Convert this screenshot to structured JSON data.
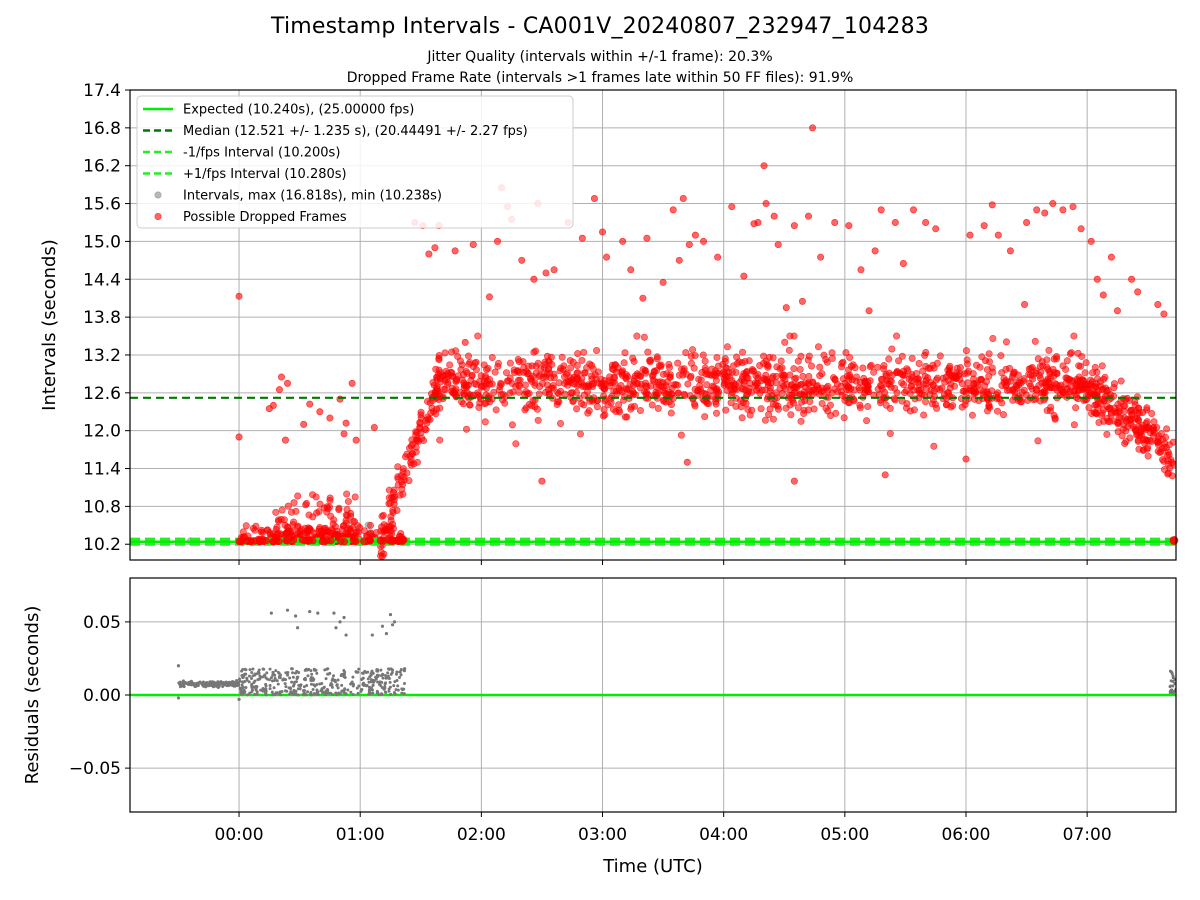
{
  "title": "Timestamp Intervals - CA001V_20240807_232947_104283",
  "subtitle_1": "Jitter Quality (intervals within +/-1 frame): 20.3%",
  "subtitle_2": "Dropped Frame Rate (intervals >1 frames late within 50 FF files): 91.9%",
  "colors": {
    "expected": "#00ee00",
    "median": "#007a00",
    "fps_band": "#22ee22",
    "intervals": "#888888",
    "dropped": "#ff0000",
    "residuals": "#777777",
    "grid": "#b0b0b0"
  },
  "chart_data": [
    {
      "type": "scatter",
      "ylabel": "Intervals (seconds)",
      "ylim": [
        9.95,
        17.4
      ],
      "yticks": [
        "10.2",
        "10.8",
        "11.4",
        "12.0",
        "12.6",
        "13.2",
        "13.8",
        "14.4",
        "15.0",
        "15.6",
        "16.2",
        "16.8",
        "17.4"
      ],
      "xlim": [
        "2024-08-07T23:06:00",
        "2024-08-08T07:44:00"
      ],
      "grid": true,
      "legend_position": "top-left",
      "legend": [
        {
          "label": "Expected (10.240s), (25.00000 fps)",
          "style": "solid-line",
          "color": "#00ee00"
        },
        {
          "label": "Median (12.521 +/- 1.235 s), (20.44491 +/- 2.27 fps)",
          "style": "dashed-line",
          "color": "#007a00"
        },
        {
          "label": "-1/fps Interval (10.200s)",
          "style": "dashed-line",
          "color": "#22ee22"
        },
        {
          "label": "+1/fps Interval (10.280s)",
          "style": "dashed-line",
          "color": "#22ee22"
        },
        {
          "label": "Intervals, max (16.818s), min (10.238s)",
          "style": "marker",
          "color": "#888888"
        },
        {
          "label": "Possible Dropped Frames",
          "style": "marker",
          "color": "#ff0000"
        }
      ],
      "reference_lines": [
        {
          "name": "Expected",
          "y": 10.24
        },
        {
          "name": "Median",
          "y": 12.521
        },
        {
          "name": "-1/fps Interval",
          "y": 10.2
        },
        {
          "name": "+1/fps Interval",
          "y": 10.28
        }
      ],
      "series": [
        {
          "name": "Intervals, max (16.818s), min (10.238s)",
          "points": [
            [
              "2024-08-07T23:30:00",
              10.25
            ],
            [
              "2024-08-07T23:36:00",
              10.25
            ],
            [
              "2024-08-08T00:34:00",
              10.42
            ],
            [
              "2024-08-08T01:04:00",
              10.5
            ],
            [
              "2024-08-08T01:05:00",
              10.38
            ]
          ]
        },
        {
          "name": "Possible Dropped Frames",
          "segments": [
            {
              "start": "2024-08-08T00:00:00",
              "end": "2024-08-08T01:22:00",
              "count": 230,
              "min": 10.24,
              "max": 10.5,
              "shape": "floor"
            },
            {
              "start": "2024-08-08T00:15:00",
              "end": "2024-08-08T00:58:00",
              "count": 110,
              "min": 10.3,
              "max": 11.0,
              "shape": "skewed"
            },
            {
              "start": "2024-08-08T01:10:00",
              "end": "2024-08-08T01:40:00",
              "count": 120,
              "min": 10.3,
              "max": 12.9,
              "shape": "ramp"
            },
            {
              "start": "2024-08-08T01:38:00",
              "end": "2024-08-08T06:55:00",
              "count": 1250,
              "min": 11.6,
              "max": 13.5,
              "shape": "band",
              "center": 12.75
            },
            {
              "start": "2024-08-08T06:55:00",
              "end": "2024-08-08T07:43:00",
              "count": 240,
              "min": 11.1,
              "max": 13.4,
              "shape": "declining"
            }
          ],
          "points": [
            [
              "2024-08-08T00:00:00",
              14.13
            ],
            [
              "2024-08-08T00:00:00",
              11.9
            ],
            [
              "2024-08-08T00:15:00",
              12.35
            ],
            [
              "2024-08-08T00:17:00",
              12.4
            ],
            [
              "2024-08-08T00:20:00",
              12.65
            ],
            [
              "2024-08-08T00:21:00",
              12.85
            ],
            [
              "2024-08-08T00:24:00",
              12.75
            ],
            [
              "2024-08-08T00:23:00",
              11.85
            ],
            [
              "2024-08-08T00:32:00",
              12.1
            ],
            [
              "2024-08-08T00:35:00",
              12.42
            ],
            [
              "2024-08-08T00:40:00",
              12.3
            ],
            [
              "2024-08-08T00:45:00",
              12.2
            ],
            [
              "2024-08-08T00:50:00",
              12.5
            ],
            [
              "2024-08-08T00:52:00",
              11.95
            ],
            [
              "2024-08-08T00:53:00",
              12.12
            ],
            [
              "2024-08-08T00:56:00",
              12.75
            ],
            [
              "2024-08-08T00:58:00",
              11.85
            ],
            [
              "2024-08-08T01:07:00",
              12.05
            ],
            [
              "2024-08-08T01:27:00",
              15.3
            ],
            [
              "2024-08-08T01:31:00",
              15.25
            ],
            [
              "2024-08-08T01:34:00",
              14.8
            ],
            [
              "2024-08-08T01:39:00",
              15.25
            ],
            [
              "2024-08-08T01:37:00",
              14.9
            ],
            [
              "2024-08-08T01:47:00",
              14.85
            ],
            [
              "2024-08-08T01:52:00",
              13.4
            ],
            [
              "2024-08-08T01:56:00",
              14.95
            ],
            [
              "2024-08-08T02:04:00",
              14.12
            ],
            [
              "2024-08-08T02:08:00",
              15.0
            ],
            [
              "2024-08-08T02:10:00",
              15.85
            ],
            [
              "2024-08-08T02:13:00",
              15.55
            ],
            [
              "2024-08-08T02:15:00",
              15.35
            ],
            [
              "2024-08-08T02:20:00",
              14.7
            ],
            [
              "2024-08-08T02:26:00",
              14.4
            ],
            [
              "2024-08-08T02:28:00",
              15.6
            ],
            [
              "2024-08-08T02:32:00",
              14.5
            ],
            [
              "2024-08-08T02:36:00",
              14.55
            ],
            [
              "2024-08-08T02:43:00",
              15.3
            ],
            [
              "2024-08-08T02:50:00",
              15.05
            ],
            [
              "2024-08-08T02:56:00",
              15.68
            ],
            [
              "2024-08-08T03:00:00",
              15.15
            ],
            [
              "2024-08-08T03:02:00",
              14.75
            ],
            [
              "2024-08-08T03:10:00",
              15.0
            ],
            [
              "2024-08-08T03:14:00",
              14.55
            ],
            [
              "2024-08-08T03:20:00",
              14.1
            ],
            [
              "2024-08-08T03:22:00",
              15.05
            ],
            [
              "2024-08-08T03:30:00",
              14.35
            ],
            [
              "2024-08-08T03:35:00",
              15.5
            ],
            [
              "2024-08-08T03:38:00",
              14.7
            ],
            [
              "2024-08-08T03:40:00",
              15.68
            ],
            [
              "2024-08-08T03:43:00",
              14.95
            ],
            [
              "2024-08-08T03:46:00",
              15.1
            ],
            [
              "2024-08-08T03:50:00",
              15.0
            ],
            [
              "2024-08-08T03:57:00",
              14.75
            ],
            [
              "2024-08-08T04:04:00",
              15.55
            ],
            [
              "2024-08-08T04:10:00",
              14.45
            ],
            [
              "2024-08-08T04:15:00",
              15.28
            ],
            [
              "2024-08-08T04:17:00",
              15.3
            ],
            [
              "2024-08-08T04:20:00",
              16.2
            ],
            [
              "2024-08-08T04:21:00",
              15.6
            ],
            [
              "2024-08-08T04:25:00",
              15.4
            ],
            [
              "2024-08-08T04:27:00",
              14.95
            ],
            [
              "2024-08-08T04:31:00",
              13.95
            ],
            [
              "2024-08-08T04:35:00",
              15.25
            ],
            [
              "2024-08-08T04:39:00",
              14.05
            ],
            [
              "2024-08-08T04:42:00",
              15.4
            ],
            [
              "2024-08-08T04:44:00",
              16.8
            ],
            [
              "2024-08-08T04:48:00",
              14.75
            ],
            [
              "2024-08-08T04:55:00",
              15.3
            ],
            [
              "2024-08-08T05:02:00",
              15.25
            ],
            [
              "2024-08-08T05:08:00",
              14.55
            ],
            [
              "2024-08-08T05:12:00",
              13.9
            ],
            [
              "2024-08-08T05:15:00",
              14.85
            ],
            [
              "2024-08-08T05:18:00",
              15.5
            ],
            [
              "2024-08-08T05:25:00",
              15.3
            ],
            [
              "2024-08-08T05:29:00",
              14.65
            ],
            [
              "2024-08-08T05:34:00",
              15.5
            ],
            [
              "2024-08-08T05:40:00",
              15.3
            ],
            [
              "2024-08-08T05:45:00",
              15.2
            ],
            [
              "2024-08-08T06:02:00",
              15.1
            ],
            [
              "2024-08-08T06:09:00",
              15.25
            ],
            [
              "2024-08-08T06:13:00",
              15.58
            ],
            [
              "2024-08-08T06:16:00",
              15.1
            ],
            [
              "2024-08-08T06:22:00",
              14.85
            ],
            [
              "2024-08-08T06:29:00",
              14.0
            ],
            [
              "2024-08-08T06:30:00",
              15.3
            ],
            [
              "2024-08-08T06:35:00",
              15.5
            ],
            [
              "2024-08-08T06:39:00",
              15.45
            ],
            [
              "2024-08-08T06:43:00",
              15.6
            ],
            [
              "2024-08-08T06:48:00",
              15.5
            ],
            [
              "2024-08-08T06:53:00",
              15.55
            ],
            [
              "2024-08-08T06:57:00",
              15.2
            ],
            [
              "2024-08-08T07:02:00",
              15.0
            ],
            [
              "2024-08-08T07:05:00",
              14.4
            ],
            [
              "2024-08-08T07:08:00",
              14.15
            ],
            [
              "2024-08-08T07:12:00",
              14.75
            ],
            [
              "2024-08-08T07:15:00",
              13.9
            ],
            [
              "2024-08-08T07:22:00",
              14.4
            ],
            [
              "2024-08-08T07:25:00",
              14.2
            ],
            [
              "2024-08-08T07:35:00",
              14.0
            ],
            [
              "2024-08-08T07:38:00",
              13.85
            ],
            [
              "2024-08-08T02:30:00",
              11.2
            ],
            [
              "2024-08-08T03:42:00",
              11.5
            ],
            [
              "2024-08-08T04:35:00",
              11.2
            ],
            [
              "2024-08-08T05:20:00",
              11.3
            ],
            [
              "2024-08-08T06:00:00",
              11.55
            ],
            [
              "2024-08-08T07:43:00",
              10.25
            ]
          ]
        }
      ]
    },
    {
      "type": "scatter",
      "xlabel": "Time (UTC)",
      "ylabel": "Residuals (seconds)",
      "ylim": [
        -0.08,
        0.08
      ],
      "yticks": [
        "0.05",
        "0.00",
        "−0.05"
      ],
      "xticks": [
        "00:00",
        "01:00",
        "02:00",
        "03:00",
        "04:00",
        "05:00",
        "06:00",
        "07:00"
      ],
      "grid": true,
      "reference_lines": [
        {
          "name": "Zero",
          "y": 0.0
        }
      ],
      "series": [
        {
          "name": "Residuals",
          "segments": [
            {
              "start": "2024-08-07T23:30:00",
              "end": "2024-08-08T00:00:00",
              "count": 220,
              "min": 0.004,
              "max": 0.011,
              "shape": "tight",
              "center": 0.0075
            },
            {
              "start": "2024-08-08T00:00:00",
              "end": "2024-08-08T01:22:00",
              "count": 420,
              "min": 0.0,
              "max": 0.018,
              "shape": "spread"
            },
            {
              "start": "2024-08-08T07:41:00",
              "end": "2024-08-08T07:44:00",
              "count": 25,
              "min": 0.001,
              "max": 0.017,
              "shape": "spread"
            }
          ],
          "points": [
            [
              "2024-08-07T23:30:00",
              0.02
            ],
            [
              "2024-08-07T23:30:00",
              -0.002
            ],
            [
              "2024-08-08T00:00:00",
              -0.003
            ],
            [
              "2024-08-08T00:16:00",
              0.056
            ],
            [
              "2024-08-08T00:24:00",
              0.058
            ],
            [
              "2024-08-08T00:28:00",
              0.054
            ],
            [
              "2024-08-08T00:29:00",
              0.046
            ],
            [
              "2024-08-08T00:35:00",
              0.057
            ],
            [
              "2024-08-08T00:39:00",
              0.056
            ],
            [
              "2024-08-08T00:47:00",
              0.056
            ],
            [
              "2024-08-08T00:48:00",
              0.046
            ],
            [
              "2024-08-08T00:50:00",
              0.05
            ],
            [
              "2024-08-08T00:52:00",
              0.053
            ],
            [
              "2024-08-08T00:53:00",
              0.041
            ],
            [
              "2024-08-08T01:06:00",
              0.041
            ],
            [
              "2024-08-08T01:11:00",
              0.047
            ],
            [
              "2024-08-08T01:13:00",
              0.042
            ],
            [
              "2024-08-08T01:15:00",
              0.055
            ],
            [
              "2024-08-08T01:16:00",
              0.048
            ],
            [
              "2024-08-08T01:17:00",
              0.05
            ],
            [
              "2024-08-08T01:22:00",
              0.018
            ]
          ]
        }
      ]
    }
  ]
}
